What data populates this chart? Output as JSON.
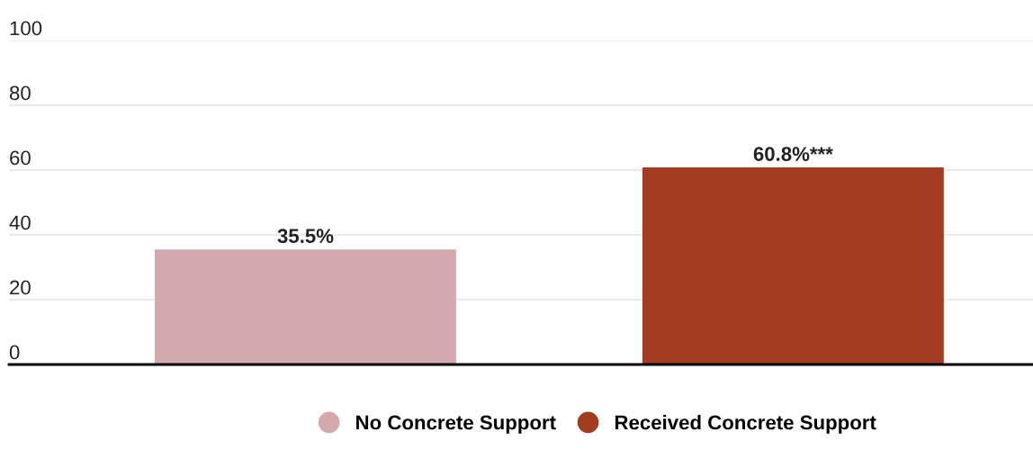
{
  "chart_data": {
    "type": "bar",
    "categories": [
      null,
      null
    ],
    "series": [
      {
        "name": "No Concrete Support",
        "color": "#d3a9ae",
        "values": [
          35.5,
          null
        ],
        "value_labels": [
          "35.5%",
          null
        ]
      },
      {
        "name": "Received Concrete Support",
        "color": "#a33b1f",
        "values": [
          null,
          60.8
        ],
        "value_labels": [
          null,
          "60.8%***"
        ]
      }
    ],
    "ylim": [
      0,
      100
    ],
    "yticks": [
      0,
      20,
      40,
      60,
      80,
      100
    ],
    "grid": "y",
    "legend": "bottom",
    "tick_labels": "y"
  }
}
